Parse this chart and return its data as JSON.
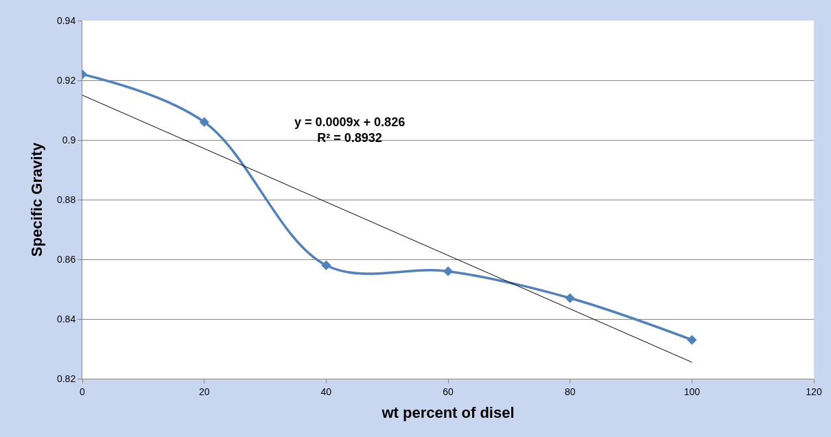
{
  "chart_data": {
    "type": "line",
    "xlabel": "wt percent of disel",
    "ylabel": "Specific Gravity",
    "x": [
      0,
      20,
      40,
      60,
      80,
      100
    ],
    "series": [
      {
        "color": "#4f81bd",
        "values": [
          0.922,
          0.906,
          0.858,
          0.856,
          0.847,
          0.833
        ],
        "marker": "diamond"
      },
      {
        "type": "line",
        "color": "#000000",
        "x": [
          0,
          100
        ],
        "values": [
          0.915,
          0.8255
        ],
        "marker": "none"
      }
    ],
    "annotations": [
      "y = 0.0009x + 0.826\nR² = 0.8932"
    ],
    "xlim": [
      0,
      120
    ],
    "xticks": [
      0,
      20,
      40,
      60,
      80,
      100,
      120
    ],
    "ylim": [
      0.82,
      0.94
    ],
    "yticks": [
      0.82,
      0.84,
      0.86,
      0.88,
      0.9,
      0.92,
      0.94
    ],
    "grid": "y"
  }
}
